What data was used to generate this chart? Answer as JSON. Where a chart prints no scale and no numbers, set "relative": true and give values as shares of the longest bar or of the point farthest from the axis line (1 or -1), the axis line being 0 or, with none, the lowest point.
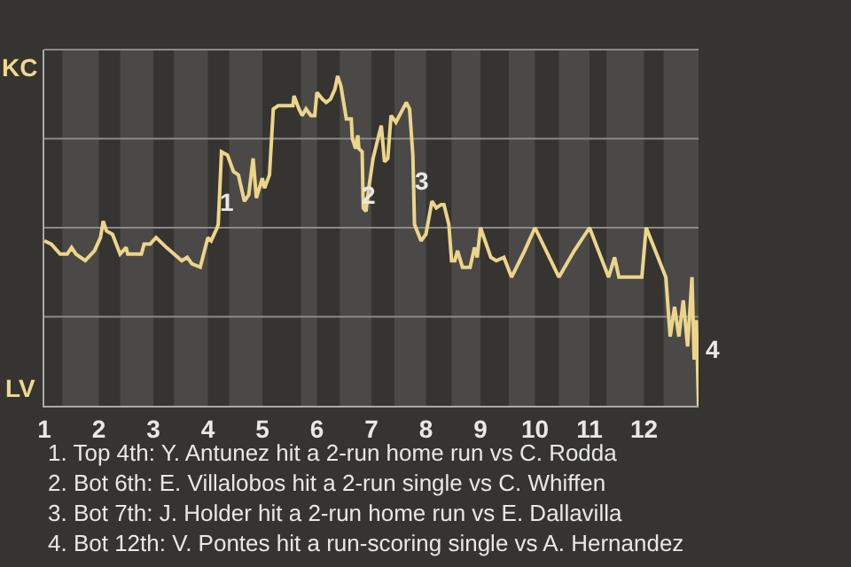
{
  "chart_data": {
    "type": "line",
    "color": "#ecd58a",
    "relative": true,
    "x": [
      1,
      1.13,
      1.29,
      1.42,
      1.5,
      1.58,
      1.75,
      1.92,
      2.03,
      2.08,
      2.14,
      2.25,
      2.39,
      2.5,
      2.53,
      2.78,
      2.83,
      2.94,
      3.05,
      3.24,
      3.38,
      3.52,
      3.62,
      3.71,
      3.86,
      4,
      4.06,
      4.17,
      4.19,
      4.25,
      4.36,
      4.47,
      4.56,
      4.67,
      4.75,
      4.83,
      4.89,
      5,
      5.04,
      5.13,
      5.2,
      5.29,
      5.56,
      5.58,
      5.67,
      5.73,
      5.8,
      5.89,
      5.96,
      6,
      6.1,
      6.17,
      6.25,
      6.33,
      6.38,
      6.44,
      6.54,
      6.63,
      6.65,
      6.71,
      6.75,
      6.77,
      6.83,
      6.85,
      6.9,
      6.96,
      7.03,
      7.18,
      7.24,
      7.3,
      7.36,
      7.45,
      7.64,
      7.7,
      7.76,
      7.79,
      7.91,
      8,
      8.11,
      8.19,
      8.28,
      8.33,
      8.42,
      8.47,
      8.53,
      8.58,
      8.67,
      8.81,
      8.89,
      8.94,
      9,
      9.19,
      9.29,
      9.43,
      9.57,
      9.81,
      10,
      10.44,
      10.72,
      11,
      11.35,
      11.46,
      11.54,
      11.96,
      12.04,
      12.28,
      12.4,
      12.48,
      12.56,
      12.64,
      12.72,
      12.8,
      12.88,
      12.92,
      12.96,
      13
    ],
    "values": [
      0.5,
      0.49,
      0.46,
      0.46,
      0.48,
      0.46,
      0.44,
      0.47,
      0.51,
      0.56,
      0.53,
      0.52,
      0.46,
      0.48,
      0.46,
      0.46,
      0.49,
      0.49,
      0.51,
      0.48,
      0.46,
      0.44,
      0.45,
      0.43,
      0.42,
      0.51,
      0.5,
      0.54,
      0.55,
      0.77,
      0.76,
      0.71,
      0.7,
      0.62,
      0.64,
      0.75,
      0.63,
      0.69,
      0.66,
      0.7,
      0.9,
      0.91,
      0.91,
      0.94,
      0.9,
      0.88,
      0.9,
      0.88,
      0.88,
      0.95,
      0.93,
      0.92,
      0.93,
      0.96,
      1,
      0.97,
      0.87,
      0.87,
      0.81,
      0.78,
      0.82,
      0.78,
      0.77,
      0.6,
      0.59,
      0.67,
      0.75,
      0.85,
      0.74,
      0.75,
      0.88,
      0.86,
      0.92,
      0.9,
      0.76,
      0.55,
      0.5,
      0.52,
      0.62,
      0.6,
      0.61,
      0.61,
      0.55,
      0.44,
      0.44,
      0.47,
      0.42,
      0.42,
      0.48,
      0.45,
      0.54,
      0.45,
      0.44,
      0.45,
      0.39,
      0.47,
      0.54,
      0.39,
      0.47,
      0.54,
      0.39,
      0.45,
      0.39,
      0.39,
      0.54,
      0.44,
      0.39,
      0.21,
      0.3,
      0.21,
      0.32,
      0.18,
      0.39,
      0.14,
      0.26,
      0
    ],
    "xlim": [
      1,
      13
    ],
    "xticks": [
      1,
      2,
      3,
      4,
      5,
      6,
      7,
      8,
      9,
      10,
      11,
      12
    ],
    "grid": "y",
    "bands": [
      {
        "axis": "x",
        "from": 1.33,
        "to": 2,
        "color": "#4a4947"
      },
      {
        "axis": "x",
        "from": 2.39,
        "to": 3,
        "color": "#4a4947"
      },
      {
        "axis": "x",
        "from": 3.38,
        "to": 4,
        "color": "#4a4947"
      },
      {
        "axis": "x",
        "from": 4.39,
        "to": 5,
        "color": "#4a4947"
      },
      {
        "axis": "x",
        "from": 5.71,
        "to": 6,
        "color": "#4a4947"
      },
      {
        "axis": "x",
        "from": 6.42,
        "to": 7,
        "color": "#4a4947"
      },
      {
        "axis": "x",
        "from": 7.42,
        "to": 8,
        "color": "#4a4947"
      },
      {
        "axis": "x",
        "from": 8.47,
        "to": 9,
        "color": "#4a4947"
      },
      {
        "axis": "x",
        "from": 9.52,
        "to": 10,
        "color": "#4a4947"
      },
      {
        "axis": "x",
        "from": 10.44,
        "to": 11,
        "color": "#4a4947"
      },
      {
        "axis": "x",
        "from": 11.31,
        "to": 12,
        "color": "#4a4947"
      },
      {
        "axis": "x",
        "from": 12.36,
        "to": 13,
        "color": "#4a4947"
      }
    ],
    "annotations": [
      "KC",
      "LV",
      {
        "text": "1",
        "x": 4.36,
        "y": 0.62
      },
      {
        "text": "2",
        "x": 6.94,
        "y": 0.64
      },
      {
        "text": "3",
        "x": 7.94,
        "y": 0.68
      },
      {
        "text": "4",
        "x": 13,
        "y": 0.17
      },
      "1. Top 4th: Y. Antunez hit a 2-run home run vs C. Rodda",
      "2. Bot 6th: E. Villalobos hit a 2-run single vs C. Whiffen",
      "3. Bot 7th: J. Holder hit a 2-run home run vs E. Dallavilla",
      "4. Bot 12th: V. Pontes hit a run-scoring single vs A. Hernandez"
    ]
  }
}
